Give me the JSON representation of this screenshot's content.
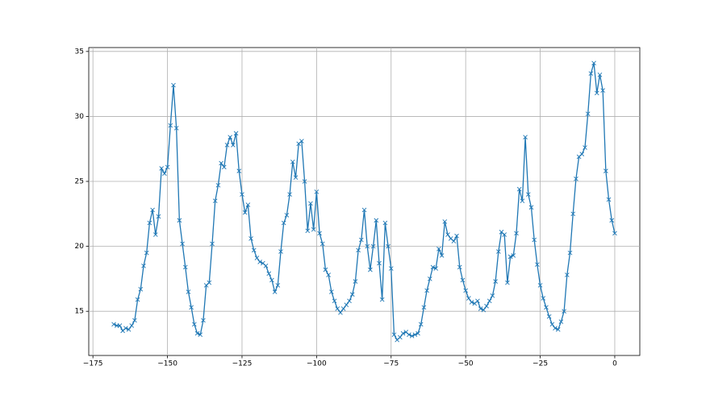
{
  "chart_data": {
    "type": "line",
    "marker": "x",
    "grid": true,
    "x": [
      -168,
      -167,
      -166,
      -165,
      -164,
      -163,
      -162,
      -161,
      -160,
      -159,
      -158,
      -157,
      -156,
      -155,
      -154,
      -153,
      -152,
      -151,
      -150,
      -149,
      -148,
      -147,
      -146,
      -145,
      -144,
      -143,
      -142,
      -141,
      -140,
      -139,
      -138,
      -137,
      -136,
      -135,
      -134,
      -133,
      -132,
      -131,
      -130,
      -129,
      -128,
      -127,
      -126,
      -125,
      -124,
      -123,
      -122,
      -121,
      -120,
      -119,
      -118,
      -117,
      -116,
      -115,
      -114,
      -113,
      -112,
      -111,
      -110,
      -109,
      -108,
      -107,
      -106,
      -105,
      -104,
      -103,
      -102,
      -101,
      -100,
      -99,
      -98,
      -97,
      -96,
      -95,
      -94,
      -93,
      -92,
      -91,
      -90,
      -89,
      -88,
      -87,
      -86,
      -85,
      -84,
      -83,
      -82,
      -81,
      -80,
      -79,
      -78,
      -77,
      -76,
      -75,
      -74,
      -73,
      -72,
      -71,
      -70,
      -69,
      -68,
      -67,
      -66,
      -65,
      -64,
      -63,
      -62,
      -61,
      -60,
      -59,
      -58,
      -57,
      -56,
      -55,
      -54,
      -53,
      -52,
      -51,
      -50,
      -49,
      -48,
      -47,
      -46,
      -45,
      -44,
      -43,
      -42,
      -41,
      -40,
      -39,
      -38,
      -37,
      -36,
      -35,
      -34,
      -33,
      -32,
      -31,
      -30,
      -29,
      -28,
      -27,
      -26,
      -25,
      -24,
      -23,
      -22,
      -21,
      -20,
      -19,
      -18,
      -17,
      -16,
      -15,
      -14,
      -13,
      -12,
      -11,
      -10,
      -9,
      -8,
      -7,
      -6,
      -5,
      -4,
      -3,
      -2,
      -1,
      0
    ],
    "series": [
      {
        "color": "#1f77b4",
        "values": [
          14.0,
          13.9,
          13.9,
          13.5,
          13.7,
          13.6,
          13.9,
          14.3,
          15.9,
          16.7,
          18.5,
          19.5,
          21.8,
          22.8,
          20.9,
          22.3,
          26.0,
          25.6,
          26.1,
          29.3,
          32.4,
          29.1,
          22.0,
          20.2,
          18.4,
          16.5,
          15.3,
          14.0,
          13.3,
          13.2,
          14.3,
          17.0,
          17.2,
          20.2,
          23.5,
          24.7,
          26.4,
          26.1,
          27.8,
          28.4,
          27.8,
          28.7,
          25.8,
          24.0,
          22.6,
          23.2,
          20.6,
          19.7,
          19.1,
          18.8,
          18.7,
          18.5,
          17.9,
          17.4,
          16.5,
          17.0,
          19.6,
          21.8,
          22.4,
          24.0,
          26.5,
          25.3,
          27.9,
          28.1,
          25.0,
          21.2,
          23.3,
          21.3,
          24.2,
          21.0,
          20.2,
          18.2,
          17.8,
          16.5,
          15.8,
          15.2,
          14.9,
          15.2,
          15.5,
          15.8,
          16.3,
          17.3,
          19.7,
          20.5,
          22.8,
          20.0,
          18.2,
          20.0,
          22.0,
          18.7,
          15.9,
          21.8,
          20.0,
          18.3,
          13.2,
          12.8,
          13.0,
          13.3,
          13.4,
          13.2,
          13.1,
          13.2,
          13.3,
          14.0,
          15.3,
          16.6,
          17.5,
          18.4,
          18.3,
          19.8,
          19.3,
          21.9,
          20.9,
          20.6,
          20.4,
          20.8,
          18.4,
          17.4,
          16.6,
          16.0,
          15.7,
          15.6,
          15.8,
          15.2,
          15.1,
          15.4,
          15.8,
          16.2,
          17.3,
          19.6,
          21.1,
          20.9,
          17.2,
          19.2,
          19.3,
          21.0,
          24.4,
          23.5,
          28.4,
          24.0,
          23.0,
          20.5,
          18.6,
          17.0,
          16.0,
          15.3,
          14.6,
          14.0,
          13.7,
          13.6,
          14.2,
          15.0,
          17.8,
          19.5,
          22.5,
          25.2,
          26.9,
          27.1,
          27.6,
          30.2,
          33.3,
          34.1,
          31.8,
          33.2,
          32.0,
          25.8,
          23.6,
          22.0,
          21.0
        ]
      }
    ],
    "xlim": [
      -176.4,
      8.4
    ],
    "ylim": [
      11.6,
      35.3
    ],
    "xticks": [
      {
        "value": -175,
        "label": "−175"
      },
      {
        "value": -150,
        "label": "−150"
      },
      {
        "value": -125,
        "label": "−125"
      },
      {
        "value": -100,
        "label": "−100"
      },
      {
        "value": -75,
        "label": "−75"
      },
      {
        "value": -50,
        "label": "−50"
      },
      {
        "value": -25,
        "label": "−25"
      },
      0
    ],
    "yticks": [
      15,
      20,
      25,
      30,
      35
    ]
  }
}
